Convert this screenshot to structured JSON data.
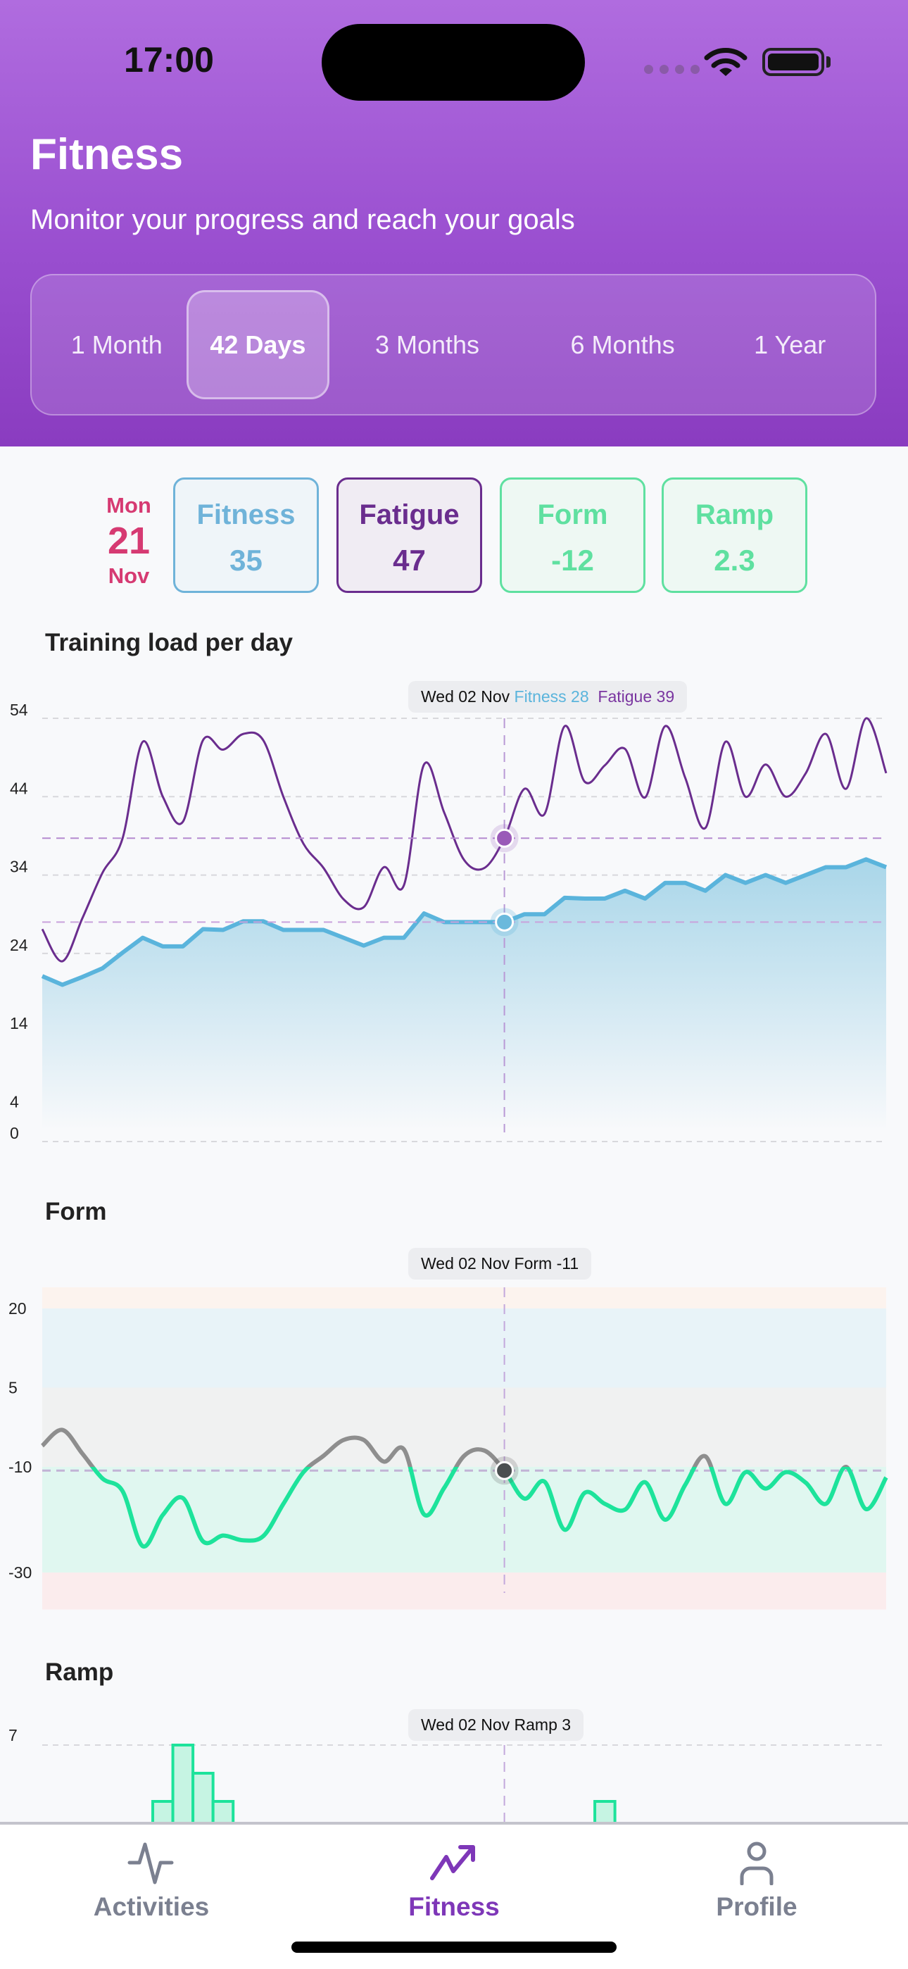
{
  "status_bar": {
    "time": "17:00"
  },
  "header": {
    "title": "Fitness",
    "subtitle": "Monitor your progress and reach your goals",
    "periods": [
      {
        "label": "1 Month",
        "selected": false
      },
      {
        "label": "42 Days",
        "selected": true
      },
      {
        "label": "3 Months",
        "selected": false
      },
      {
        "label": "6 Months",
        "selected": false
      },
      {
        "label": "1 Year",
        "selected": false
      }
    ]
  },
  "summary": {
    "date": {
      "weekday": "Mon",
      "day": "21",
      "month": "Nov"
    },
    "cards": [
      {
        "label": "Fitness",
        "value": "35",
        "color": "#6fb3d9",
        "bg": "#eff5f9"
      },
      {
        "label": "Fatigue",
        "value": "47",
        "color": "#6a2d8e",
        "bg": "#f0ecf3"
      },
      {
        "label": "Form",
        "value": "-12",
        "color": "#5fe0a0",
        "bg": "#eef8f3"
      },
      {
        "label": "Ramp",
        "value": "2.3",
        "color": "#5fe0a0",
        "bg": "#eef8f3"
      }
    ]
  },
  "sections": {
    "training_load": "Training load per day",
    "form": "Form",
    "ramp": "Ramp"
  },
  "tooltips": {
    "training_load": {
      "date": "Wed 02 Nov",
      "fitness": "Fitness 28",
      "fatigue": "Fatigue 39"
    },
    "form": {
      "date": "Wed 02 Nov",
      "value": "Form -11"
    },
    "ramp": {
      "date": "Wed 02 Nov",
      "value": "Ramp 3"
    }
  },
  "chart_data": [
    {
      "type": "line",
      "title": "Training load per day",
      "y_ticks": [
        54,
        44,
        34,
        24,
        14,
        4,
        0
      ],
      "ylim": [
        0,
        54
      ],
      "grid": true,
      "cursor_index": 23,
      "series": [
        {
          "name": "Fitness",
          "color": "#5ab4dc",
          "fill": true,
          "values": [
            21.1,
            20,
            21,
            22.1,
            24.1,
            26,
            24.9,
            24.9,
            27.1,
            27,
            28.1,
            28.1,
            27,
            27,
            27,
            26,
            25,
            26,
            26,
            29.1,
            28,
            28,
            28,
            28,
            29,
            29,
            31.1,
            31,
            31,
            32,
            31,
            33,
            33,
            32,
            34,
            33,
            34,
            33,
            34,
            35,
            35,
            36,
            35
          ]
        },
        {
          "name": "Fatigue",
          "color": "#6a2d8e",
          "fill": false,
          "values": [
            27.1,
            23,
            28.5,
            34.3,
            38.7,
            51,
            44,
            40.8,
            51.2,
            50,
            52,
            51.2,
            44,
            38,
            34.9,
            30.9,
            29.9,
            35,
            32.7,
            48.1,
            42,
            35.9,
            34.9,
            38.7,
            45,
            41.8,
            53,
            45.9,
            48,
            50.1,
            43.9,
            53,
            46.4,
            40,
            51,
            44,
            48.1,
            44,
            47,
            52,
            45,
            54,
            47
          ]
        }
      ]
    },
    {
      "type": "line",
      "title": "Form",
      "y_ticks": [
        20,
        5,
        -10,
        -30
      ],
      "ylim": [
        -37,
        24
      ],
      "cursor_index": 23,
      "zones": [
        {
          "from": 20,
          "to": 24,
          "color": "#fcf3ee"
        },
        {
          "from": 5,
          "to": 20,
          "color": "#e8f3f8"
        },
        {
          "from": -10,
          "to": 5,
          "color": "#f0f1f1"
        },
        {
          "from": -30,
          "to": -10,
          "color": "#e0f7f0"
        },
        {
          "from": -37,
          "to": -30,
          "color": "#fbeced"
        }
      ],
      "line_colors": {
        "above": "#8e8e8e",
        "below": "#1de39b"
      },
      "threshold": -10,
      "series": [
        {
          "values": [
            -6,
            -3,
            -7.5,
            -12.2,
            -14.6,
            -25,
            -19.1,
            -15.9,
            -24.1,
            -23,
            -23.9,
            -23.1,
            -17,
            -11,
            -7.9,
            -4.9,
            -4.9,
            -9,
            -6.7,
            -19,
            -14,
            -7.9,
            -6.9,
            -10.7,
            -16,
            -12.8,
            -21.9,
            -14.9,
            -17,
            -18.1,
            -12.9,
            -20,
            -13.4,
            -8,
            -17,
            -11,
            -14.1,
            -11,
            -13,
            -17,
            -10,
            -18,
            -12
          ]
        }
      ]
    },
    {
      "type": "bar",
      "title": "Ramp",
      "y_ticks": [
        7
      ],
      "cursor_index": 23,
      "color": "#1de39b",
      "series": [
        {
          "values": [
            null,
            null,
            null,
            null,
            null,
            null,
            3,
            7,
            5,
            3,
            null,
            null,
            null,
            null,
            null,
            null,
            null,
            null,
            null,
            null,
            null,
            null,
            null,
            3,
            null,
            null,
            null,
            null,
            3,
            null,
            null,
            null,
            null,
            null,
            null,
            null,
            null,
            null,
            null,
            null,
            null,
            null,
            null
          ]
        }
      ]
    }
  ],
  "tabbar": {
    "items": [
      {
        "label": "Activities",
        "icon": "activity-pulse-icon",
        "active": false
      },
      {
        "label": "Fitness",
        "icon": "trending-up-icon",
        "active": true
      },
      {
        "label": "Profile",
        "icon": "person-icon",
        "active": false
      }
    ]
  }
}
